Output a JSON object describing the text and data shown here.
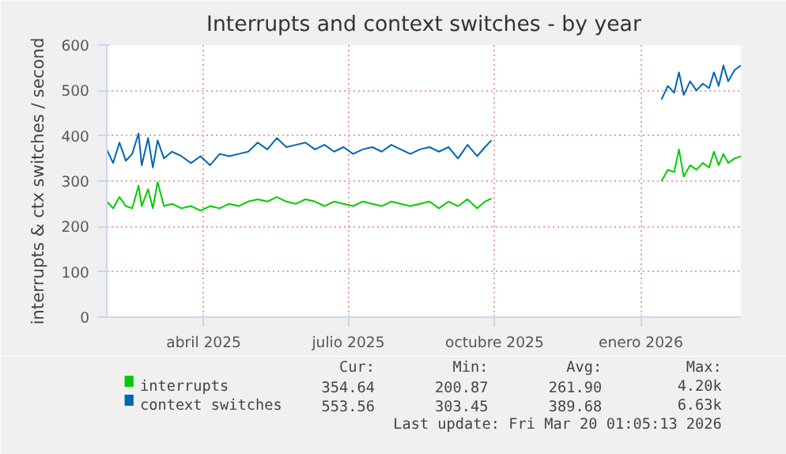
{
  "chart_data": {
    "type": "line",
    "title": "Interrupts and context switches - by year",
    "ylabel": "interrupts & ctx switches / second",
    "x": [
      "2025-02-14",
      "2025-02-18",
      "2025-02-22",
      "2025-02-26",
      "2025-03-02",
      "2025-03-06",
      "2025-03-08",
      "2025-03-12",
      "2025-03-15",
      "2025-03-18",
      "2025-03-22",
      "2025-03-27",
      "2025-04-02",
      "2025-04-08",
      "2025-04-14",
      "2025-04-20",
      "2025-04-26",
      "2025-05-02",
      "2025-05-08",
      "2025-05-14",
      "2025-05-20",
      "2025-05-26",
      "2025-06-01",
      "2025-06-07",
      "2025-06-13",
      "2025-06-19",
      "2025-06-25",
      "2025-07-01",
      "2025-07-07",
      "2025-07-13",
      "2025-07-19",
      "2025-07-25",
      "2025-07-31",
      "2025-08-06",
      "2025-08-12",
      "2025-08-18",
      "2025-08-24",
      "2025-08-30",
      "2025-09-05",
      "2025-09-11",
      "2025-09-17",
      "2025-09-23",
      "2025-09-29",
      "2025-10-05",
      "2025-10-10",
      "2025-10-14",
      "2025-12-01",
      "2026-01-29",
      "2026-02-02",
      "2026-02-06",
      "2026-02-09",
      "2026-02-12",
      "2026-02-16",
      "2026-02-20",
      "2026-02-24",
      "2026-02-28",
      "2026-03-03",
      "2026-03-06",
      "2026-03-09",
      "2026-03-12",
      "2026-03-16",
      "2026-03-20"
    ],
    "series": [
      {
        "name": "interrupts",
        "color": "#00cc00",
        "values": [
          255,
          240,
          265,
          245,
          240,
          290,
          245,
          282,
          240,
          298,
          245,
          250,
          240,
          245,
          235,
          245,
          240,
          250,
          245,
          255,
          260,
          255,
          265,
          255,
          250,
          260,
          255,
          245,
          255,
          250,
          245,
          255,
          250,
          245,
          255,
          250,
          245,
          250,
          255,
          240,
          255,
          245,
          260,
          240,
          255,
          262,
          null,
          300,
          325,
          320,
          370,
          310,
          335,
          325,
          340,
          330,
          365,
          335,
          360,
          340,
          350,
          355
        ]
      },
      {
        "name": "context switches",
        "color": "#0066b3",
        "values": [
          370,
          340,
          385,
          345,
          360,
          405,
          335,
          395,
          330,
          390,
          350,
          365,
          355,
          340,
          355,
          335,
          360,
          355,
          360,
          365,
          385,
          370,
          395,
          375,
          380,
          385,
          370,
          380,
          365,
          375,
          360,
          370,
          375,
          365,
          380,
          370,
          360,
          370,
          375,
          365,
          375,
          350,
          380,
          355,
          375,
          390,
          null,
          480,
          510,
          495,
          540,
          490,
          520,
          500,
          515,
          505,
          540,
          510,
          555,
          520,
          545,
          555
        ]
      }
    ],
    "xlim": [
      "2025-02-14",
      "2026-03-20"
    ],
    "xticks": [
      {
        "value": "2025-04-16",
        "label": "abril 2025"
      },
      {
        "value": "2025-07-16",
        "label": "julio 2025"
      },
      {
        "value": "2025-10-16",
        "label": "octubre 2025"
      },
      {
        "value": "2026-01-16",
        "label": "enero 2026"
      }
    ],
    "ylim": [
      0,
      600
    ],
    "yticks": [
      0,
      100,
      200,
      300,
      400,
      500,
      600
    ],
    "grid": true,
    "legend": "bottom",
    "annotations": [
      "Cur:",
      "Min:",
      "Avg:",
      "Max:",
      "354.64",
      "200.87",
      "261.90",
      "4.20k",
      "553.56",
      "303.45",
      "389.68",
      "6.63k",
      "Last update: Fri Mar 20 01:05:13 2026"
    ]
  }
}
